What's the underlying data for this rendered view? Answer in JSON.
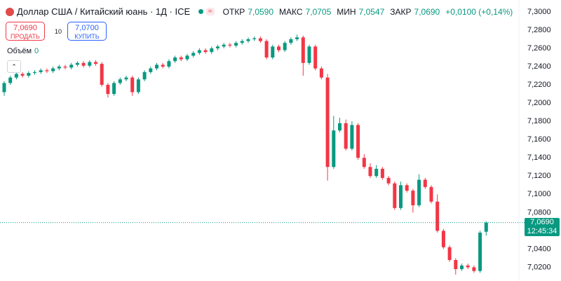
{
  "chart_data": {
    "type": "candlestick",
    "title": "Доллар США / Китайский юань · 1Д · ICE",
    "ohlc_header": {
      "open_label": "ОТКР",
      "open": "7,0590",
      "high_label": "МАКС",
      "high": "7,0705",
      "low_label": "МИН",
      "low": "7,0547",
      "close_label": "ЗАКР",
      "close": "7,0690",
      "change": "+0,0100 (+0,14%)"
    },
    "sell": {
      "price": "7,0690",
      "label": "ПРОДАТЬ"
    },
    "quantity": "10",
    "buy": {
      "price": "7,0700",
      "label": "КУПИТЬ"
    },
    "volume": {
      "label": "Объём",
      "value": "0"
    },
    "last_price_label": "7,0690",
    "countdown": "12:45:34",
    "up_color": "#089981",
    "down_color": "#f23645",
    "grid": false,
    "ylim": [
      7.005,
      7.313
    ],
    "yticks": [
      {
        "value": 7.3,
        "label": "7,3000"
      },
      {
        "value": 7.28,
        "label": "7,2800"
      },
      {
        "value": 7.26,
        "label": "7,2600"
      },
      {
        "value": 7.24,
        "label": "7,2400"
      },
      {
        "value": 7.22,
        "label": "7,2200"
      },
      {
        "value": 7.2,
        "label": "7,2000"
      },
      {
        "value": 7.18,
        "label": "7,1800"
      },
      {
        "value": 7.16,
        "label": "7,1600"
      },
      {
        "value": 7.14,
        "label": "7,1400"
      },
      {
        "value": 7.12,
        "label": "7,1200"
      },
      {
        "value": 7.1,
        "label": "7,1000"
      },
      {
        "value": 7.08,
        "label": "7,0800"
      },
      {
        "value": 7.04,
        "label": "7,0400"
      },
      {
        "value": 7.02,
        "label": "7,0200"
      }
    ],
    "open": [
      7.212,
      7.222,
      7.228,
      7.232,
      7.23,
      7.233,
      7.234,
      7.236,
      7.235,
      7.238,
      7.24,
      7.239,
      7.242,
      7.244,
      7.241,
      7.245,
      7.243,
      7.22,
      7.21,
      7.222,
      7.226,
      7.228,
      7.212,
      7.226,
      7.234,
      7.238,
      7.242,
      7.24,
      7.246,
      7.25,
      7.248,
      7.252,
      7.255,
      7.258,
      7.256,
      7.26,
      7.262,
      7.264,
      7.263,
      7.266,
      7.268,
      7.27,
      7.271,
      7.268,
      7.25,
      7.262,
      7.258,
      7.266,
      7.27,
      7.272,
      7.244,
      7.262,
      7.238,
      7.228,
      7.13,
      7.17,
      7.178,
      7.15,
      7.176,
      7.14,
      7.13,
      7.12,
      7.128,
      7.118,
      7.112,
      7.085,
      7.11,
      7.104,
      7.088,
      7.116,
      7.108,
      7.092,
      7.06,
      7.042,
      7.028,
      7.018,
      7.022,
      7.02,
      7.016,
      7.059
    ],
    "high": [
      7.224,
      7.23,
      7.234,
      7.234,
      7.235,
      7.236,
      7.238,
      7.238,
      7.24,
      7.242,
      7.242,
      7.244,
      7.246,
      7.246,
      7.247,
      7.247,
      7.245,
      7.222,
      7.224,
      7.228,
      7.23,
      7.23,
      7.228,
      7.236,
      7.24,
      7.244,
      7.244,
      7.248,
      7.252,
      7.252,
      7.254,
      7.257,
      7.26,
      7.26,
      7.262,
      7.264,
      7.266,
      7.266,
      7.268,
      7.27,
      7.272,
      7.273,
      7.273,
      7.27,
      7.264,
      7.264,
      7.268,
      7.272,
      7.275,
      7.274,
      7.264,
      7.264,
      7.24,
      7.232,
      7.186,
      7.184,
      7.182,
      7.18,
      7.178,
      7.144,
      7.134,
      7.132,
      7.13,
      7.12,
      7.114,
      7.114,
      7.112,
      7.106,
      7.122,
      7.118,
      7.11,
      7.1,
      7.062,
      7.044,
      7.03,
      7.024,
      7.024,
      7.022,
      7.06,
      7.0705
    ],
    "low": [
      7.208,
      7.22,
      7.226,
      7.228,
      7.228,
      7.231,
      7.232,
      7.233,
      7.233,
      7.236,
      7.237,
      7.237,
      7.24,
      7.239,
      7.239,
      7.241,
      7.218,
      7.206,
      7.208,
      7.22,
      7.224,
      7.208,
      7.21,
      7.224,
      7.232,
      7.236,
      7.238,
      7.238,
      7.244,
      7.246,
      7.246,
      7.25,
      7.253,
      7.254,
      7.254,
      7.258,
      7.26,
      7.261,
      7.261,
      7.264,
      7.266,
      7.268,
      7.266,
      7.248,
      7.248,
      7.256,
      7.256,
      7.264,
      7.268,
      7.23,
      7.242,
      7.236,
      7.226,
      7.115,
      7.128,
      7.168,
      7.148,
      7.148,
      7.138,
      7.128,
      7.118,
      7.118,
      7.116,
      7.11,
      7.083,
      7.083,
      7.102,
      7.08,
      7.086,
      7.106,
      7.09,
      7.058,
      7.04,
      7.026,
      7.012,
      7.016,
      7.018,
      7.014,
      7.014,
      7.0547
    ],
    "close": [
      7.222,
      7.228,
      7.232,
      7.23,
      7.233,
      7.234,
      7.236,
      7.235,
      7.238,
      7.24,
      7.239,
      7.242,
      7.244,
      7.241,
      7.245,
      7.243,
      7.22,
      7.21,
      7.222,
      7.226,
      7.228,
      7.212,
      7.226,
      7.234,
      7.238,
      7.242,
      7.24,
      7.246,
      7.25,
      7.248,
      7.252,
      7.255,
      7.258,
      7.256,
      7.26,
      7.262,
      7.264,
      7.263,
      7.266,
      7.268,
      7.27,
      7.271,
      7.268,
      7.25,
      7.262,
      7.258,
      7.266,
      7.27,
      7.272,
      7.244,
      7.262,
      7.238,
      7.228,
      7.13,
      7.17,
      7.178,
      7.15,
      7.176,
      7.14,
      7.13,
      7.12,
      7.128,
      7.118,
      7.112,
      7.085,
      7.11,
      7.104,
      7.088,
      7.116,
      7.108,
      7.092,
      7.06,
      7.042,
      7.028,
      7.018,
      7.022,
      7.02,
      7.016,
      7.058,
      7.069
    ]
  }
}
